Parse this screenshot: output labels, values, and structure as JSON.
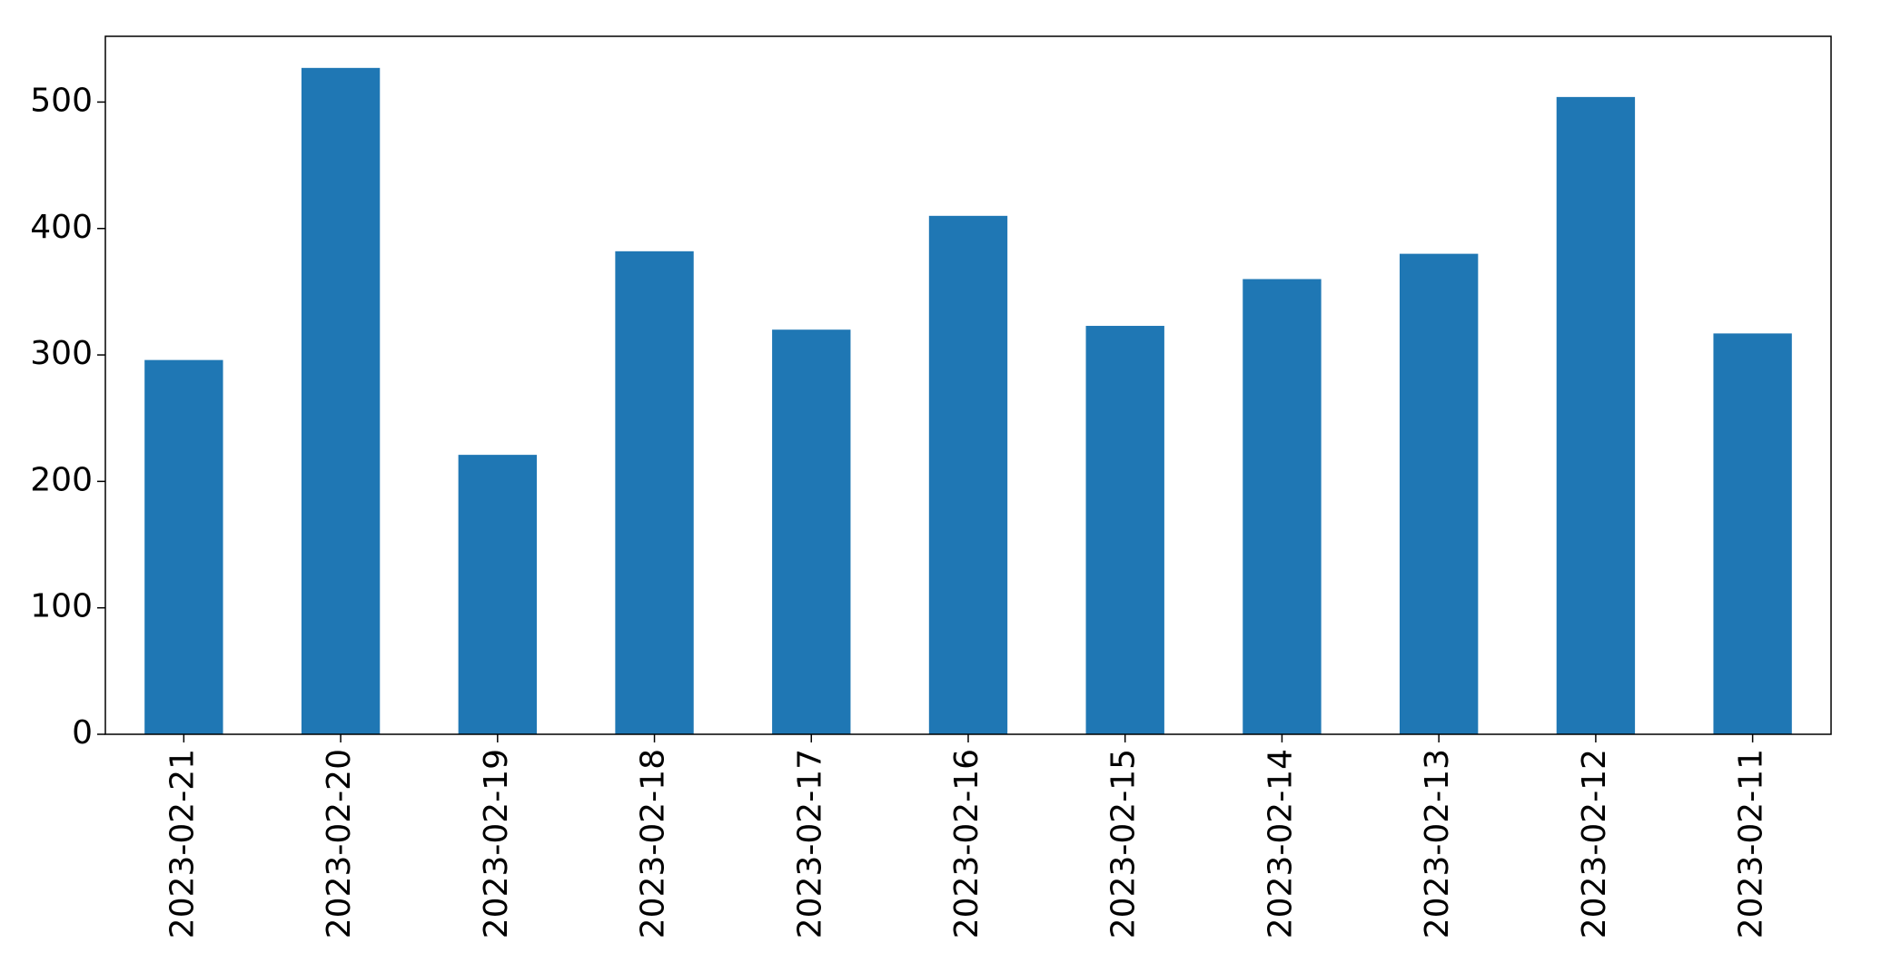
{
  "chart_data": {
    "type": "bar",
    "categories": [
      "2023-02-21",
      "2023-02-20",
      "2023-02-19",
      "2023-02-18",
      "2023-02-17",
      "2023-02-16",
      "2023-02-15",
      "2023-02-14",
      "2023-02-13",
      "2023-02-12",
      "2023-02-11"
    ],
    "values": [
      296,
      527,
      221,
      382,
      320,
      410,
      323,
      360,
      380,
      504,
      317
    ],
    "color": "#1f77b4",
    "ylim": [
      0,
      552
    ],
    "yticks": [
      0,
      100,
      200,
      300,
      400,
      500
    ],
    "grid": false
  }
}
